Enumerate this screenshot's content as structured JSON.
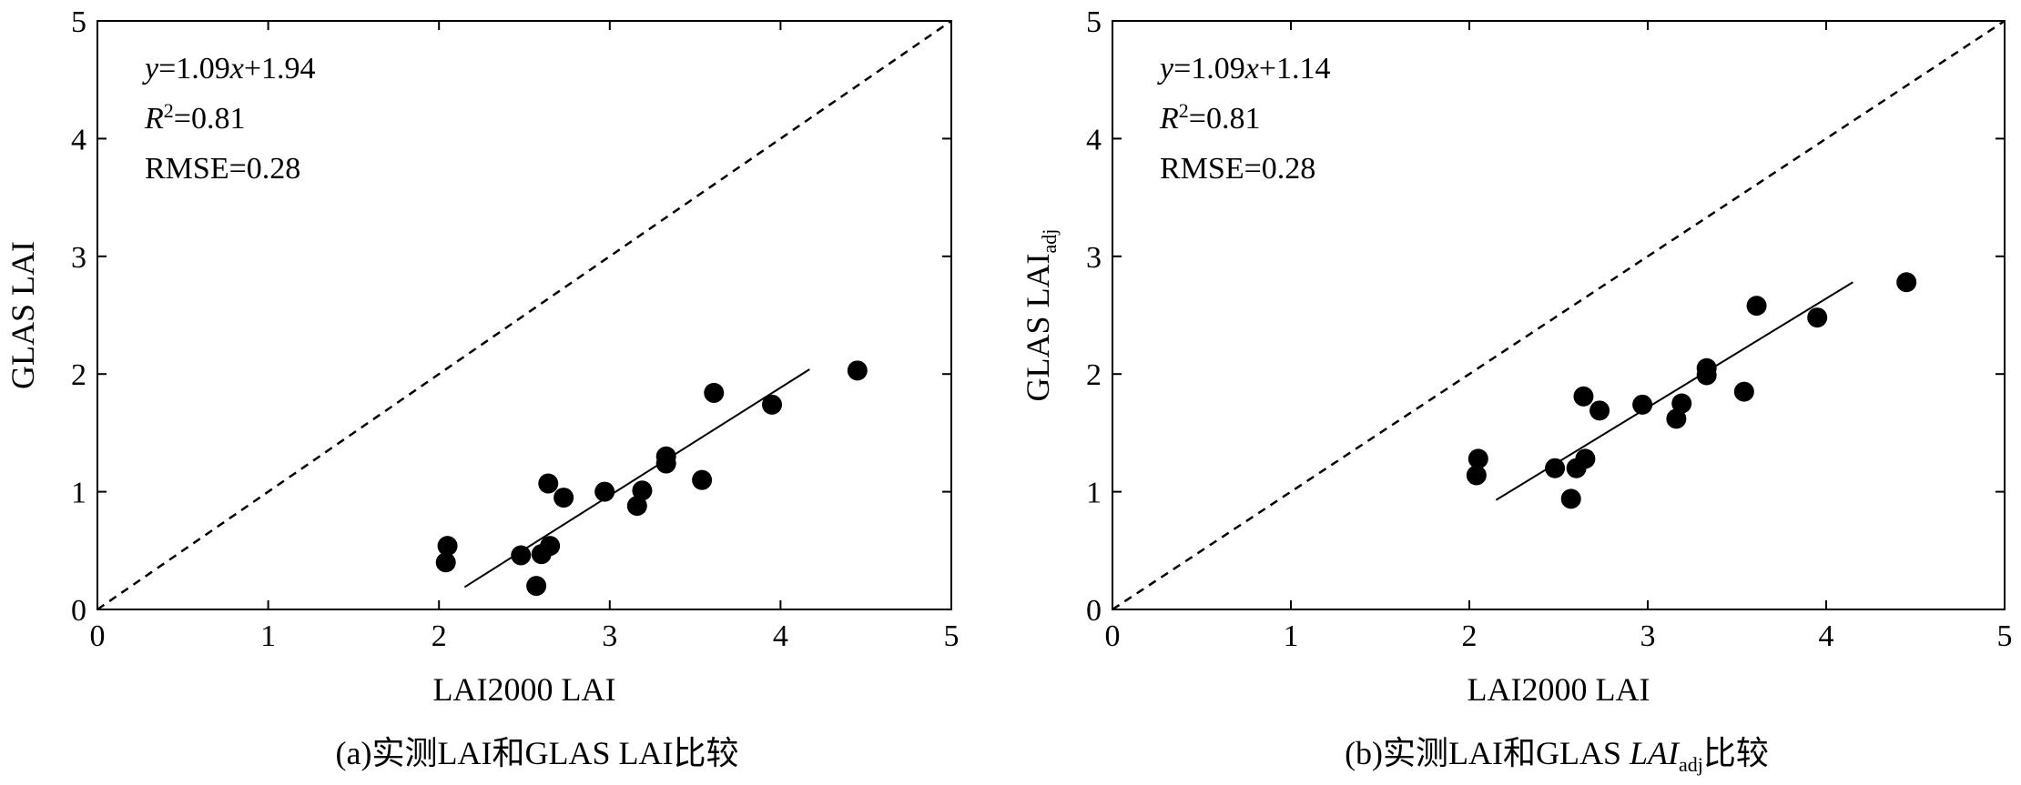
{
  "chart_data": [
    {
      "type": "scatter",
      "panel_caption_prefix": "(a)实测LAI和GLAS LAI比较",
      "xlabel": "LAI2000 LAI",
      "ylabel": "GLAS LAI",
      "ylabel_subscript": "",
      "xlim": [
        0,
        5
      ],
      "ylim": [
        0,
        5
      ],
      "xticks": [
        "0",
        "1",
        "2",
        "3",
        "4",
        "5"
      ],
      "yticks": [
        "0",
        "1",
        "2",
        "3",
        "4",
        "5"
      ],
      "annotations": {
        "equation_y": "y",
        "equation_mid": "=1.09",
        "equation_x": "x",
        "equation_tail": "+1.94",
        "r2_R": "R",
        "r2_sup": "2",
        "r2_value": "=0.81",
        "rmse": "RMSE=0.28"
      },
      "grid": false,
      "one_to_one_line": "dashed",
      "fit_line": {
        "x": [
          2.15,
          4.17
        ],
        "y": [
          0.19,
          2.04
        ]
      },
      "points": [
        {
          "x": 2.04,
          "y": 0.4
        },
        {
          "x": 2.05,
          "y": 0.54
        },
        {
          "x": 2.48,
          "y": 0.46
        },
        {
          "x": 2.57,
          "y": 0.2
        },
        {
          "x": 2.6,
          "y": 0.47
        },
        {
          "x": 2.64,
          "y": 1.07
        },
        {
          "x": 2.65,
          "y": 0.54
        },
        {
          "x": 2.73,
          "y": 0.95
        },
        {
          "x": 2.97,
          "y": 1.0
        },
        {
          "x": 3.16,
          "y": 0.88
        },
        {
          "x": 3.19,
          "y": 1.01
        },
        {
          "x": 3.33,
          "y": 1.24
        },
        {
          "x": 3.33,
          "y": 1.3
        },
        {
          "x": 3.54,
          "y": 1.1
        },
        {
          "x": 3.61,
          "y": 1.84
        },
        {
          "x": 3.95,
          "y": 1.74
        },
        {
          "x": 4.45,
          "y": 2.03
        }
      ]
    },
    {
      "type": "scatter",
      "panel_caption_prefix": "(b)实测LAI和GLAS ",
      "panel_caption_italic": "LAI",
      "panel_caption_sub": "adj",
      "panel_caption_suffix": "比较",
      "xlabel": "LAI2000 LAI",
      "ylabel": "GLAS LAI",
      "ylabel_subscript": "adj",
      "xlim": [
        0,
        5
      ],
      "ylim": [
        0,
        5
      ],
      "xticks": [
        "0",
        "1",
        "2",
        "3",
        "4",
        "5"
      ],
      "yticks": [
        "0",
        "1",
        "2",
        "3",
        "4",
        "5"
      ],
      "annotations": {
        "equation_y": "y",
        "equation_mid": "=1.09",
        "equation_x": "x",
        "equation_tail": "+1.14",
        "r2_R": "R",
        "r2_sup": "2",
        "r2_value": "=0.81",
        "rmse": "RMSE=0.28"
      },
      "grid": false,
      "one_to_one_line": "dashed",
      "fit_line": {
        "x": [
          2.15,
          4.15
        ],
        "y": [
          0.93,
          2.78
        ]
      },
      "points": [
        {
          "x": 2.04,
          "y": 1.14
        },
        {
          "x": 2.05,
          "y": 1.28
        },
        {
          "x": 2.48,
          "y": 1.2
        },
        {
          "x": 2.57,
          "y": 0.94
        },
        {
          "x": 2.6,
          "y": 1.2
        },
        {
          "x": 2.64,
          "y": 1.81
        },
        {
          "x": 2.65,
          "y": 1.28
        },
        {
          "x": 2.73,
          "y": 1.69
        },
        {
          "x": 2.97,
          "y": 1.74
        },
        {
          "x": 3.16,
          "y": 1.62
        },
        {
          "x": 3.19,
          "y": 1.75
        },
        {
          "x": 3.33,
          "y": 1.99
        },
        {
          "x": 3.33,
          "y": 2.05
        },
        {
          "x": 3.54,
          "y": 1.85
        },
        {
          "x": 3.61,
          "y": 2.58
        },
        {
          "x": 3.95,
          "y": 2.48
        },
        {
          "x": 4.45,
          "y": 2.78
        }
      ]
    }
  ]
}
